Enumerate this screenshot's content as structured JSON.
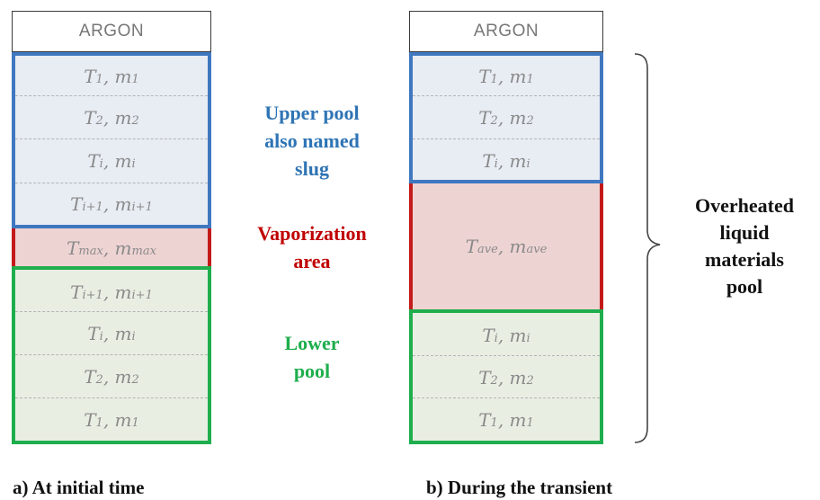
{
  "panel_a": {
    "argon_label": "ARGON",
    "upper_cells": [
      {
        "t": "T",
        "tsub": "1",
        "m": "m",
        "msub": "1"
      },
      {
        "t": "T",
        "tsub": "2",
        "m": "m",
        "msub": "2"
      },
      {
        "t": "T",
        "tsub": "i",
        "m": "m",
        "msub": "i"
      },
      {
        "t": "T",
        "tsub": "i+1",
        "m": "m",
        "msub": "i+1"
      }
    ],
    "vapor_cell": {
      "t": "T",
      "tsub": "max",
      "m": "m",
      "msub": "max"
    },
    "lower_cells": [
      {
        "t": "T",
        "tsub": "i+1",
        "m": "m",
        "msub": "i+1"
      },
      {
        "t": "T",
        "tsub": "i",
        "m": "m",
        "msub": "i"
      },
      {
        "t": "T",
        "tsub": "2",
        "m": "m",
        "msub": "2"
      },
      {
        "t": "T",
        "tsub": "1",
        "m": "m",
        "msub": "1"
      }
    ],
    "caption": "a) At initial time"
  },
  "panel_b": {
    "argon_label": "ARGON",
    "upper_cells": [
      {
        "t": "T",
        "tsub": "1",
        "m": "m",
        "msub": "1"
      },
      {
        "t": "T",
        "tsub": "2",
        "m": "m",
        "msub": "2"
      },
      {
        "t": "T",
        "tsub": "i",
        "m": "m",
        "msub": "i"
      }
    ],
    "vapor_cell": {
      "t": "T",
      "tsub": "ave",
      "m": "m",
      "msub": "ave"
    },
    "lower_cells": [
      {
        "t": "T",
        "tsub": "i",
        "m": "m",
        "msub": "i"
      },
      {
        "t": "T",
        "tsub": "2",
        "m": "m",
        "msub": "2"
      },
      {
        "t": "T",
        "tsub": "1",
        "m": "m",
        "msub": "1"
      }
    ],
    "caption": "b) During the transient"
  },
  "labels": {
    "upper_pool": [
      "Upper pool",
      "also named",
      "slug"
    ],
    "vaporization": [
      "Vaporization",
      "area"
    ],
    "lower_pool": [
      "Lower",
      "pool"
    ],
    "overheated": [
      "Overheated",
      "liquid",
      "materials",
      "pool"
    ]
  },
  "colors": {
    "upper": "#3f78c0",
    "vapor": "#c41a1a",
    "lower": "#1fae4d"
  }
}
